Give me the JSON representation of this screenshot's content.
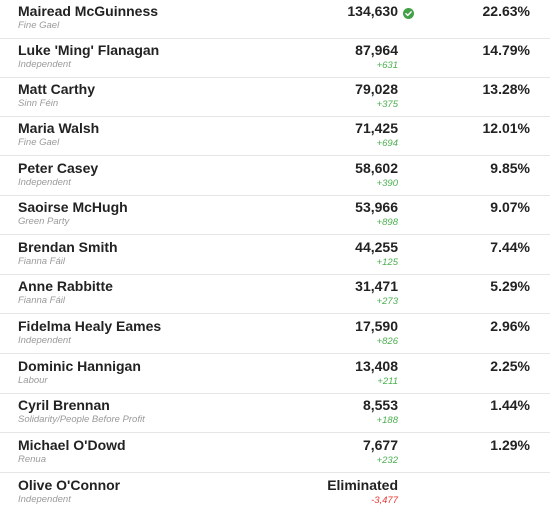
{
  "candidates": [
    {
      "name": "Mairead McGuinness",
      "party": "Fine Gael",
      "votes": "134,630",
      "change": "",
      "percent": "22.63%",
      "elected": true
    },
    {
      "name": "Luke 'Ming' Flanagan",
      "party": "Independent",
      "votes": "87,964",
      "change": "+631",
      "percent": "14.79%"
    },
    {
      "name": "Matt Carthy",
      "party": "Sinn Féin",
      "votes": "79,028",
      "change": "+375",
      "percent": "13.28%"
    },
    {
      "name": "Maria Walsh",
      "party": "Fine Gael",
      "votes": "71,425",
      "change": "+694",
      "percent": "12.01%"
    },
    {
      "name": "Peter Casey",
      "party": "Independent",
      "votes": "58,602",
      "change": "+390",
      "percent": "9.85%"
    },
    {
      "name": "Saoirse McHugh",
      "party": "Green Party",
      "votes": "53,966",
      "change": "+898",
      "percent": "9.07%"
    },
    {
      "name": "Brendan Smith",
      "party": "Fianna Fáil",
      "votes": "44,255",
      "change": "+125",
      "percent": "7.44%"
    },
    {
      "name": "Anne Rabbitte",
      "party": "Fianna Fáil",
      "votes": "31,471",
      "change": "+273",
      "percent": "5.29%"
    },
    {
      "name": "Fidelma Healy Eames",
      "party": "Independent",
      "votes": "17,590",
      "change": "+826",
      "percent": "2.96%"
    },
    {
      "name": "Dominic Hannigan",
      "party": "Labour",
      "votes": "13,408",
      "change": "+211",
      "percent": "2.25%"
    },
    {
      "name": "Cyril Brennan",
      "party": "Solidarity/People Before Profit",
      "votes": "8,553",
      "change": "+188",
      "percent": "1.44%"
    },
    {
      "name": "Michael O'Dowd",
      "party": "Renua",
      "votes": "7,677",
      "change": "+232",
      "percent": "1.29%"
    },
    {
      "name": "Olive O'Connor",
      "party": "Independent",
      "votes": "Eliminated",
      "change": "-3,477",
      "percent": ""
    }
  ],
  "colors": {
    "positive": "#4caf50",
    "negative": "#e53935",
    "elected_icon": "#43a047"
  },
  "icons": {
    "elected": "check-circle-icon"
  }
}
